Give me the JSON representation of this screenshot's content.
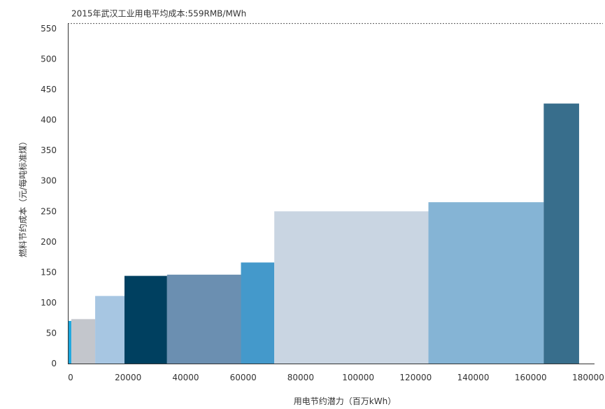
{
  "chart_data": {
    "type": "bar",
    "subtype": "variable-width step (marginal cost curve)",
    "reference_line": {
      "value": 559,
      "label": "2015年武汉工业用电平均成本:559RMB/MWh",
      "style": "dashed"
    },
    "xlabel": "用电节约潜力（百万kWh）",
    "ylabel": "燃料节约成本（元/每吨标准煤）",
    "xlim": [
      0,
      180000
    ],
    "ylim": [
      0,
      550
    ],
    "x_ticks": [
      "0",
      "20000",
      "40000",
      "60000",
      "80000",
      "100000",
      "120000",
      "140000",
      "160000",
      "180000"
    ],
    "y_ticks": [
      "0",
      "50",
      "100",
      "150",
      "200",
      "250",
      "300",
      "350",
      "400",
      "450",
      "500",
      "550"
    ],
    "grid": false,
    "segments": [
      {
        "x_start": 0,
        "x_end": 1200,
        "value": 70,
        "color": "#1aa6de"
      },
      {
        "x_start": 1200,
        "x_end": 9500,
        "value": 73,
        "color": "#c3c6cc"
      },
      {
        "x_start": 9500,
        "x_end": 19700,
        "value": 111,
        "color": "#a7c6e2"
      },
      {
        "x_start": 19700,
        "x_end": 34500,
        "value": 144,
        "color": "#004060"
      },
      {
        "x_start": 34500,
        "x_end": 60200,
        "value": 146,
        "color": "#6b8fb1"
      },
      {
        "x_start": 60200,
        "x_end": 71800,
        "value": 166,
        "color": "#4499cb"
      },
      {
        "x_start": 71800,
        "x_end": 125400,
        "value": 250,
        "color": "#c9d5e2"
      },
      {
        "x_start": 125400,
        "x_end": 165500,
        "value": 265,
        "color": "#85b4d5"
      },
      {
        "x_start": 165500,
        "x_end": 177800,
        "value": 427,
        "color": "#386e8c"
      }
    ]
  }
}
